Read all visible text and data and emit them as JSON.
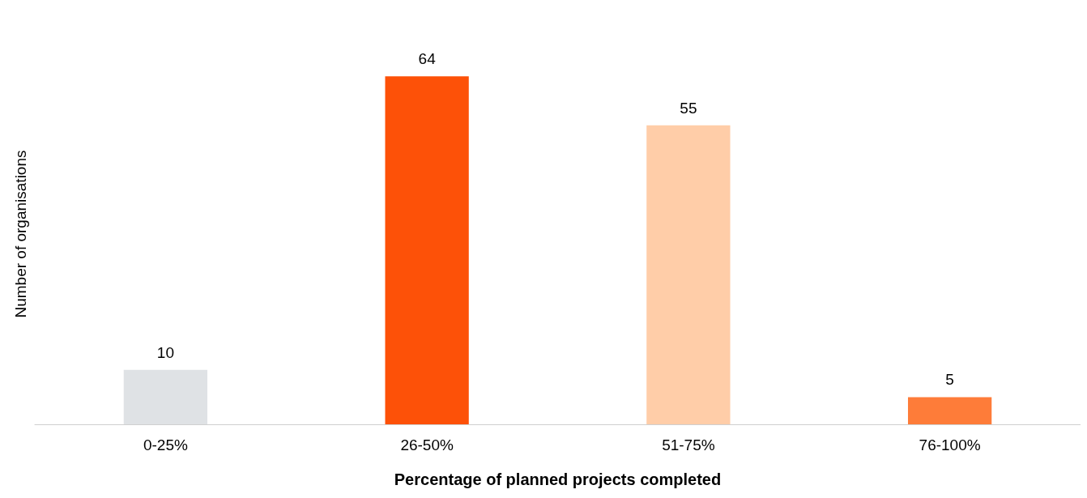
{
  "chart_data": {
    "type": "bar",
    "xlabel": "Percentage of planned projects completed",
    "ylabel": "Number of organisations",
    "categories": [
      "0-25%",
      "26-50%",
      "51-75%",
      "76-100%"
    ],
    "values": [
      10,
      64,
      55,
      5
    ],
    "colors": [
      "#dfe2e5",
      "#fd5108",
      "#ffcda8",
      "#fe7c39"
    ],
    "data_labels": true
  }
}
